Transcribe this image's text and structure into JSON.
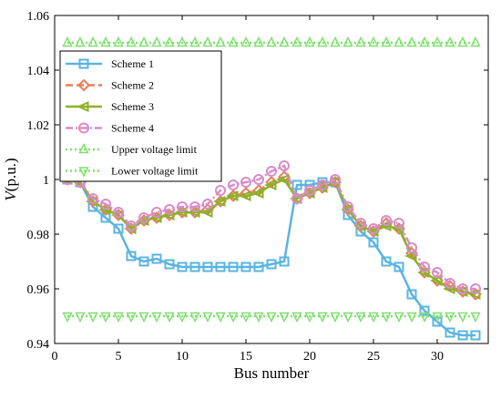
{
  "chart_data": {
    "type": "line",
    "xlabel": "Bus number",
    "ylabel": {
      "italic": "V",
      "rest": "(p.u.)"
    },
    "xlim": [
      0,
      34
    ],
    "ylim": [
      0.94,
      1.06
    ],
    "xticks": [
      0,
      5,
      10,
      15,
      20,
      25,
      30
    ],
    "yticks": [
      0.94,
      0.96,
      0.98,
      1,
      1.02,
      1.04,
      1.06
    ],
    "ytick_labels": [
      "0.94",
      "0.96",
      "0.98",
      "1",
      "1.02",
      "1.04",
      "1.06"
    ],
    "grid": false,
    "legend_position": "upper-left",
    "x": [
      1,
      2,
      3,
      4,
      5,
      6,
      7,
      8,
      9,
      10,
      11,
      12,
      13,
      14,
      15,
      16,
      17,
      18,
      19,
      20,
      21,
      22,
      23,
      24,
      25,
      26,
      27,
      28,
      29,
      30,
      31,
      32,
      33
    ],
    "series": [
      {
        "name": "Scheme 1",
        "color": "#5ab4e0",
        "marker": "square",
        "dash": "solid",
        "values": [
          1.0,
          0.999,
          0.99,
          0.986,
          0.982,
          0.972,
          0.97,
          0.971,
          0.969,
          0.968,
          0.968,
          0.968,
          0.968,
          0.968,
          0.968,
          0.968,
          0.969,
          0.97,
          0.998,
          0.998,
          0.999,
          0.999,
          0.987,
          0.981,
          0.977,
          0.97,
          0.968,
          0.958,
          0.952,
          0.948,
          0.944,
          0.943,
          0.943
        ]
      },
      {
        "name": "Scheme 2",
        "color": "#e8805a",
        "marker": "diamond",
        "dash": "dashed",
        "values": [
          1.0,
          0.999,
          0.992,
          0.989,
          0.987,
          0.982,
          0.985,
          0.986,
          0.987,
          0.988,
          0.988,
          0.989,
          0.992,
          0.994,
          0.995,
          0.996,
          0.999,
          1.001,
          0.993,
          0.995,
          0.997,
          0.999,
          0.989,
          0.983,
          0.981,
          0.984,
          0.982,
          0.973,
          0.966,
          0.963,
          0.961,
          0.959,
          0.958
        ]
      },
      {
        "name": "Scheme 3",
        "color": "#8fb02a",
        "marker": "triangle-left",
        "dash": "solid",
        "values": [
          1.0,
          0.999,
          0.992,
          0.989,
          0.987,
          0.982,
          0.985,
          0.986,
          0.987,
          0.988,
          0.988,
          0.988,
          0.992,
          0.994,
          0.994,
          0.995,
          0.998,
          1.0,
          0.993,
          0.995,
          0.997,
          0.999,
          0.989,
          0.983,
          0.981,
          0.983,
          0.982,
          0.972,
          0.966,
          0.963,
          0.96,
          0.959,
          0.958
        ]
      },
      {
        "name": "Scheme 4",
        "color": "#d98cc8",
        "marker": "circle",
        "dash": "dashdot",
        "values": [
          1.0,
          0.999,
          0.993,
          0.991,
          0.988,
          0.983,
          0.986,
          0.988,
          0.989,
          0.99,
          0.99,
          0.991,
          0.996,
          0.998,
          0.999,
          1.0,
          1.003,
          1.005,
          0.993,
          0.996,
          0.998,
          1.0,
          0.99,
          0.984,
          0.982,
          0.985,
          0.984,
          0.975,
          0.968,
          0.966,
          0.962,
          0.96,
          0.96
        ]
      },
      {
        "name": "Upper voltage limit",
        "color": "#7ee06e",
        "marker": "triangle-up",
        "dash": "dotted",
        "values": [
          1.05,
          1.05,
          1.05,
          1.05,
          1.05,
          1.05,
          1.05,
          1.05,
          1.05,
          1.05,
          1.05,
          1.05,
          1.05,
          1.05,
          1.05,
          1.05,
          1.05,
          1.05,
          1.05,
          1.05,
          1.05,
          1.05,
          1.05,
          1.05,
          1.05,
          1.05,
          1.05,
          1.05,
          1.05,
          1.05,
          1.05,
          1.05,
          1.05
        ]
      },
      {
        "name": "Lower voltage limit",
        "color": "#7ee06e",
        "marker": "triangle-down",
        "dash": "dotted",
        "values": [
          0.95,
          0.95,
          0.95,
          0.95,
          0.95,
          0.95,
          0.95,
          0.95,
          0.95,
          0.95,
          0.95,
          0.95,
          0.95,
          0.95,
          0.95,
          0.95,
          0.95,
          0.95,
          0.95,
          0.95,
          0.95,
          0.95,
          0.95,
          0.95,
          0.95,
          0.95,
          0.95,
          0.95,
          0.95,
          0.95,
          0.95,
          0.95,
          0.95
        ]
      }
    ]
  }
}
